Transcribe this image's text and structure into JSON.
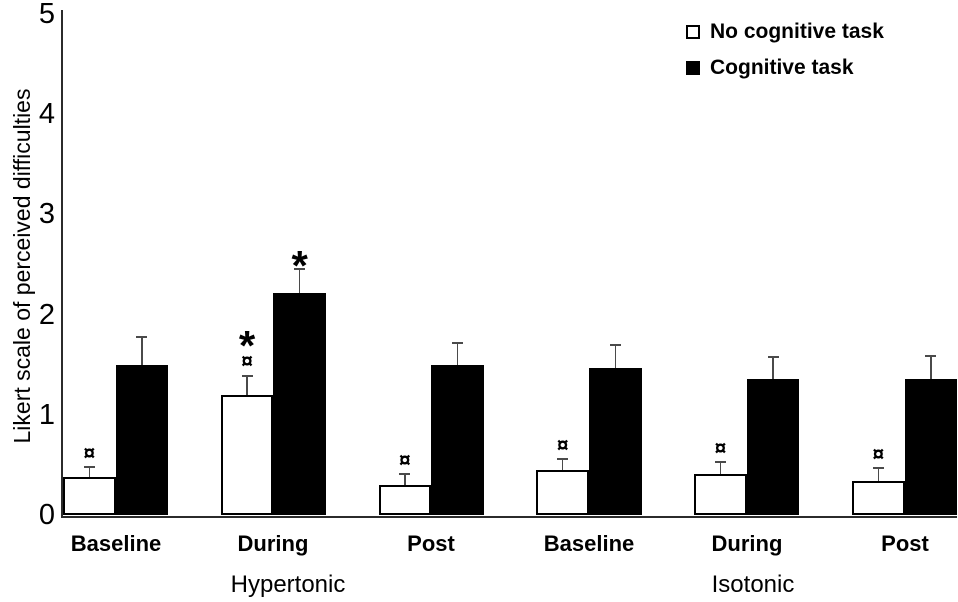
{
  "chart_data": {
    "type": "bar",
    "title": "",
    "ylabel": "Likert scale of perceived difficulties",
    "xlabel": "",
    "ylim": [
      0,
      5
    ],
    "yticks": [
      "0",
      "1",
      "2",
      "3",
      "4",
      "5"
    ],
    "grid": false,
    "legend_position": "top-right",
    "sections": [
      {
        "label": "Hypertonic",
        "categories": [
          "Baseline",
          "During",
          "Post"
        ]
      },
      {
        "label": "Isotonic",
        "categories": [
          "Baseline",
          "During",
          "Post"
        ]
      }
    ],
    "categories": [
      "Hypertonic Baseline",
      "Hypertonic During",
      "Hypertonic Post",
      "Isotonic Baseline",
      "Isotonic During",
      "Isotonic Post"
    ],
    "series": [
      {
        "name": "No cognitive task",
        "fill": "#ffffff",
        "values": [
          0.38,
          1.2,
          0.3,
          0.45,
          0.41,
          0.34
        ],
        "errors_upper": [
          0.1,
          0.19,
          0.11,
          0.11,
          0.12,
          0.13
        ],
        "annotations_bottom_up": [
          [
            "¤"
          ],
          [
            "¤",
            "*"
          ],
          [
            "¤"
          ],
          [
            "¤"
          ],
          [
            "¤"
          ],
          [
            "¤"
          ]
        ]
      },
      {
        "name": "Cognitive task",
        "fill": "#000000",
        "values": [
          1.5,
          2.22,
          1.5,
          1.47,
          1.36,
          1.36
        ],
        "errors_upper": [
          0.28,
          0.24,
          0.22,
          0.23,
          0.22,
          0.23
        ],
        "annotations_bottom_up": [
          [],
          [
            "*"
          ],
          [],
          [],
          [],
          []
        ]
      }
    ]
  },
  "colors": {
    "bar_outline": "#000000",
    "bar_fill_series2": "#000000",
    "axis": "#2b2b2b",
    "error_bar": "#4a4a4a",
    "background": "#ffffff"
  }
}
